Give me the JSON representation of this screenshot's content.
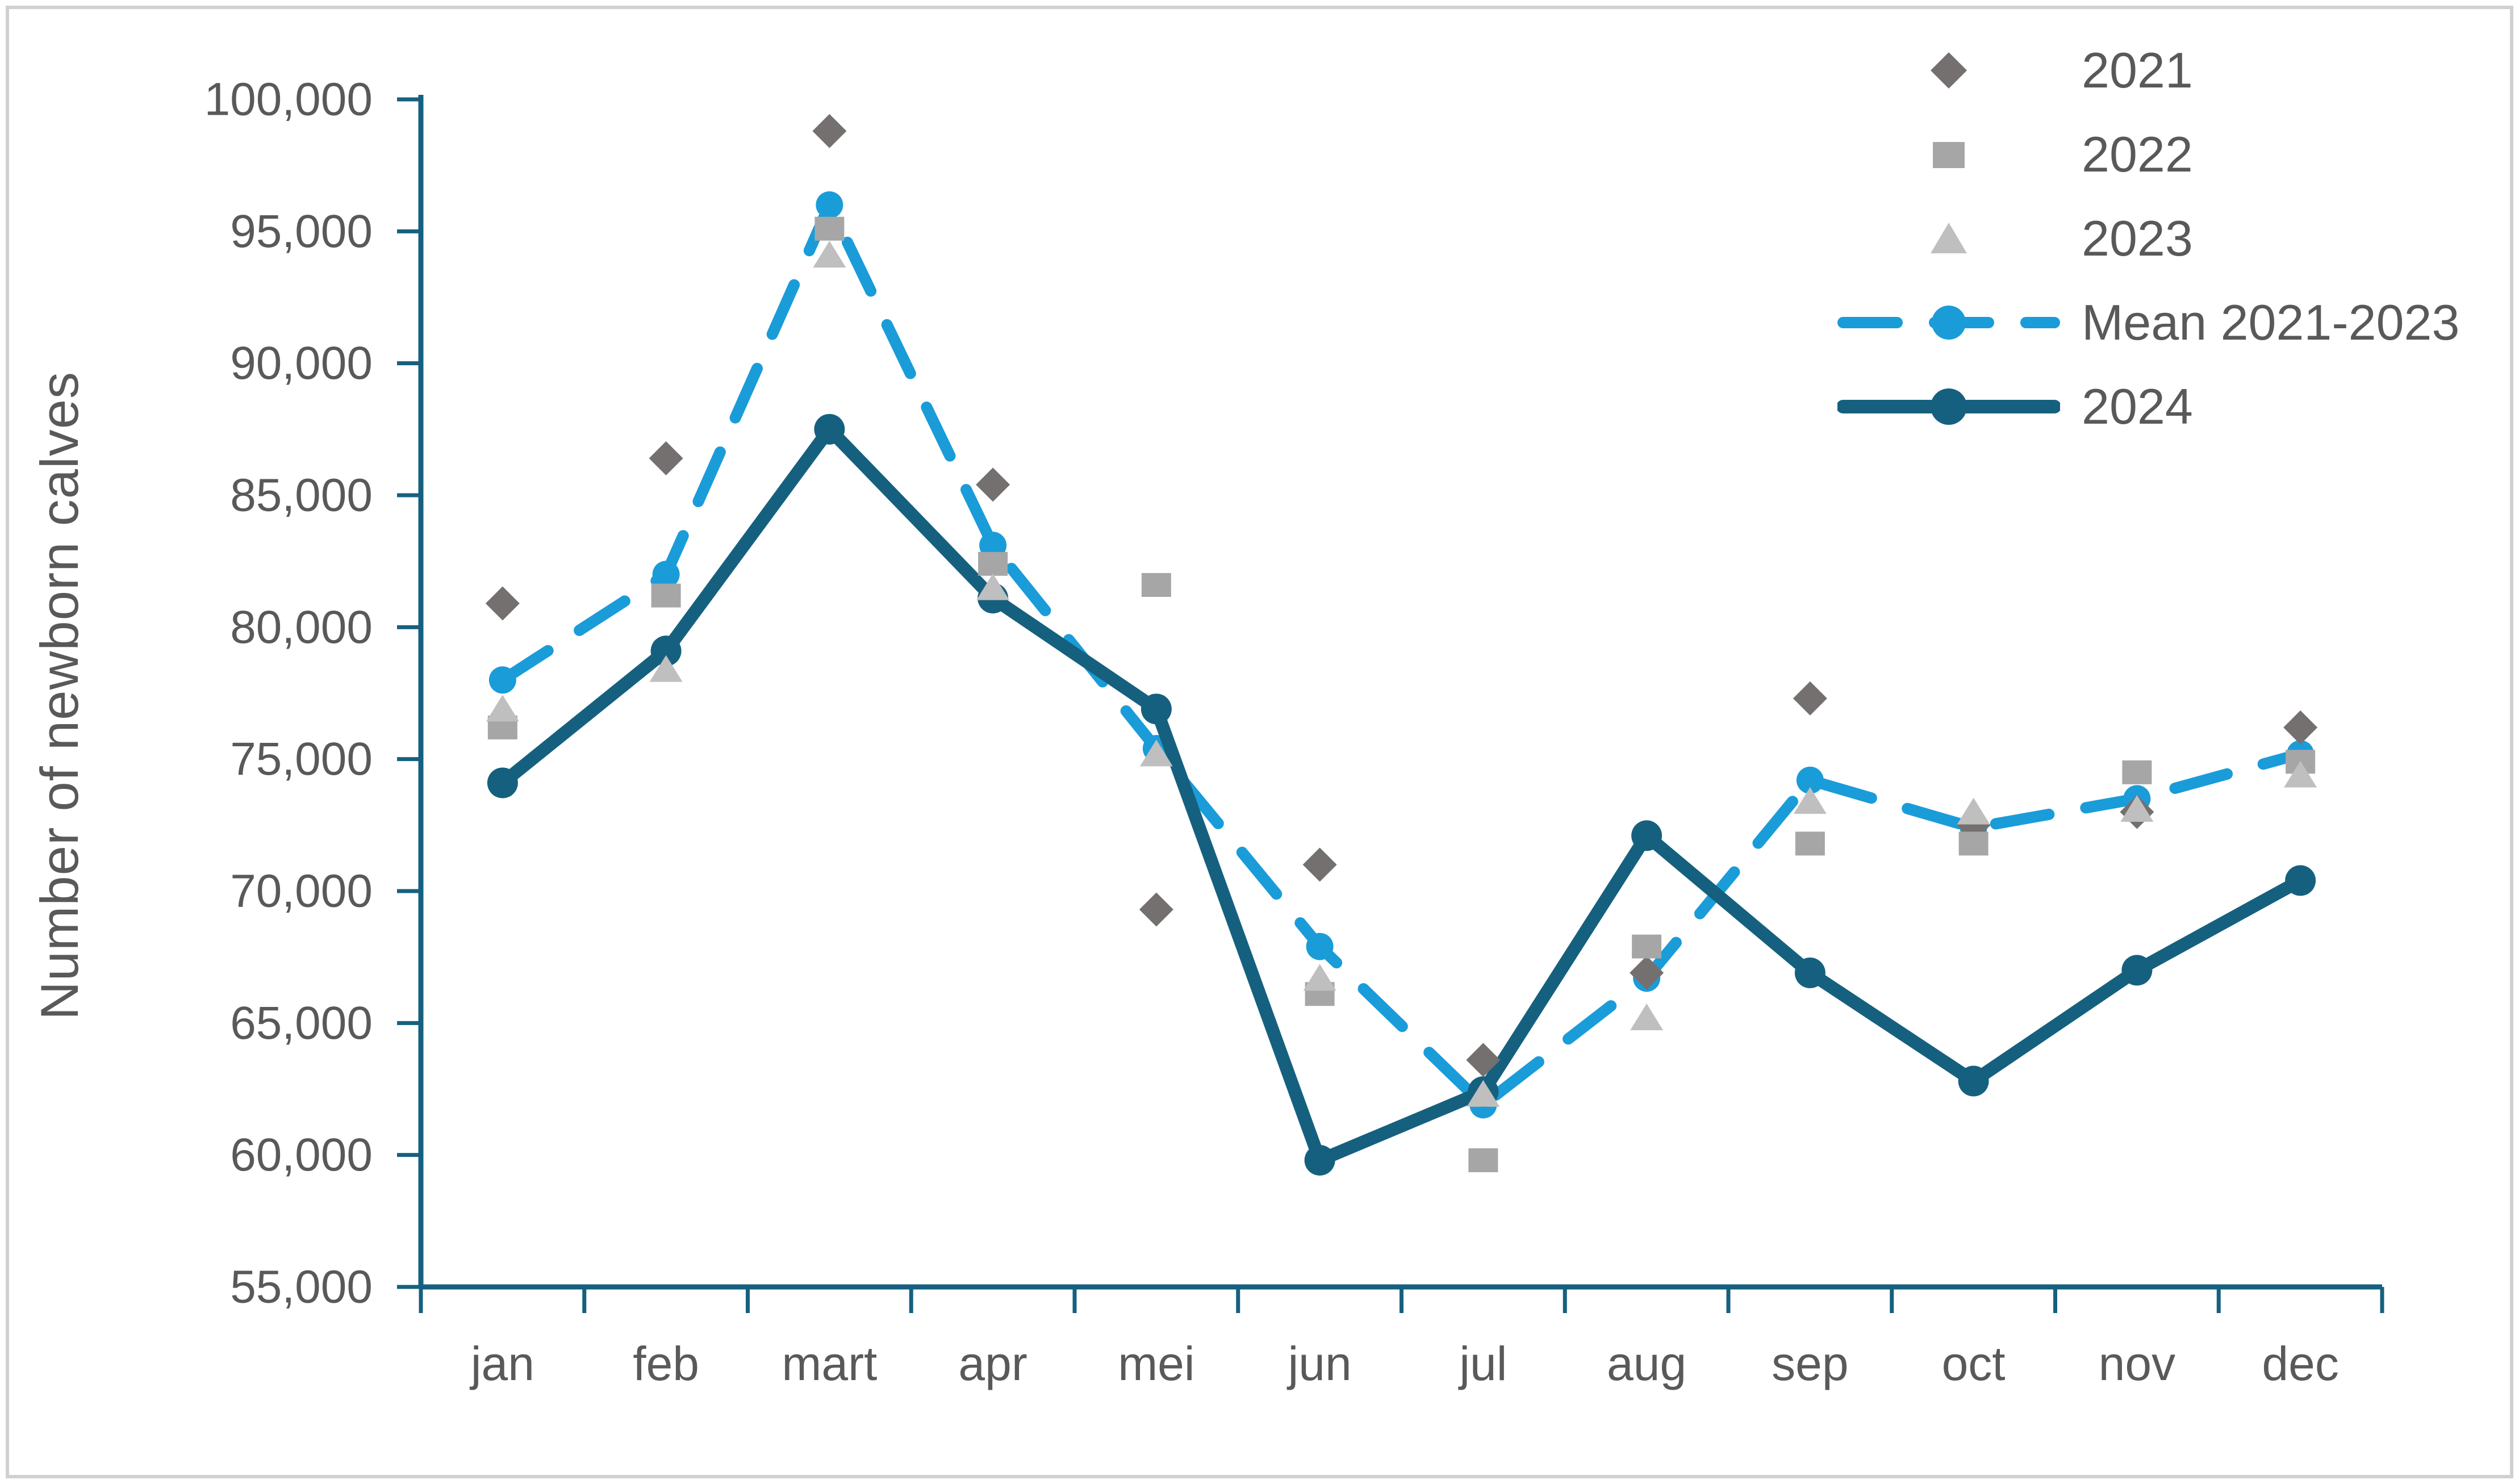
{
  "chart_data": {
    "type": "line",
    "title": "",
    "xlabel": "",
    "ylabel": "Number of newborn calves",
    "categories": [
      "jan",
      "feb",
      "mart",
      "apr",
      "mei",
      "jun",
      "jul",
      "aug",
      "sep",
      "oct",
      "nov",
      "dec"
    ],
    "y_axis": {
      "min": 55000,
      "max": 100000,
      "step": 5000,
      "tick_format": "#,##0"
    },
    "grid": false,
    "legend_position": "top-right",
    "series": [
      {
        "name": "2021",
        "type": "scatter",
        "marker": "diamond",
        "color": "#757070",
        "values": [
          80900,
          86400,
          98800,
          85400,
          69300,
          71000,
          63600,
          66900,
          77300,
          72500,
          73000,
          76200
        ]
      },
      {
        "name": "2022",
        "type": "scatter",
        "marker": "square",
        "color": "#a6a6a6",
        "values": [
          76200,
          81200,
          95100,
          82400,
          81600,
          66100,
          59800,
          67900,
          71800,
          71800,
          74500,
          74900
        ]
      },
      {
        "name": "2023",
        "type": "scatter",
        "marker": "triangle",
        "color": "#bfbfbf",
        "values": [
          76900,
          78400,
          94100,
          81500,
          75200,
          66700,
          62300,
          65200,
          73400,
          73000,
          73100,
          74400
        ]
      },
      {
        "name": "Mean 2021-2023",
        "type": "line",
        "line_style": "dashed",
        "marker": "circle",
        "color": "#1a9cd9",
        "values": [
          78000,
          82000,
          96000,
          83100,
          75400,
          67900,
          61900,
          66700,
          74200,
          72400,
          73500,
          75200
        ]
      },
      {
        "name": "2024",
        "type": "line",
        "line_style": "solid",
        "marker": "circle",
        "color": "#16607f",
        "values": [
          74100,
          79100,
          87500,
          81100,
          76900,
          59800,
          62400,
          72100,
          66900,
          62800,
          67000,
          70400
        ]
      }
    ],
    "axis_color": "#16607f",
    "text_color": "#595959"
  }
}
